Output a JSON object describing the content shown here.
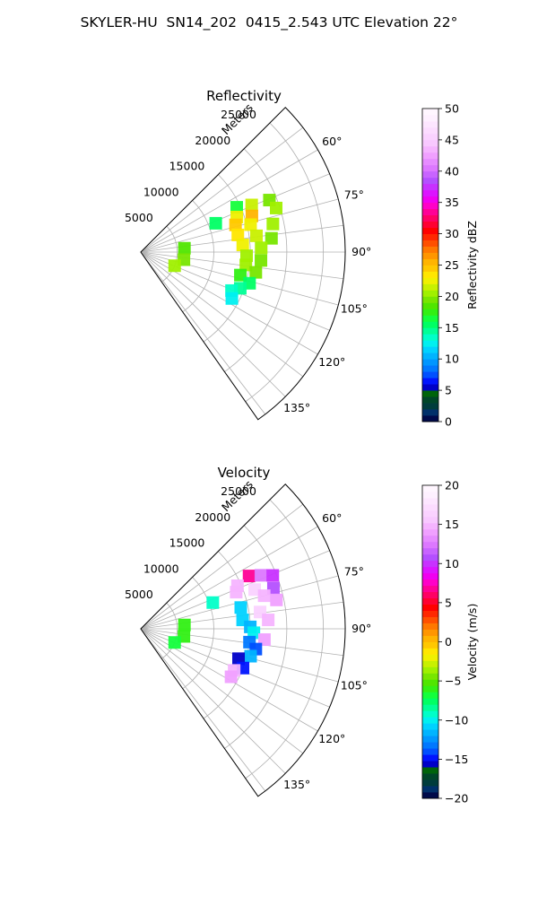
{
  "figure": {
    "title": "SKYLER-HU  SN14_202  0415_2.543 UTC Elevation 22°"
  },
  "chart_data": [
    {
      "type": "polar-sector",
      "title": "Reflectivity",
      "radial_label": "Meters",
      "range_ticks": [
        "5000",
        "10000",
        "15000",
        "20000",
        "25000"
      ],
      "range_values": [
        5000,
        10000,
        15000,
        20000,
        25000
      ],
      "range_max_m": 28000,
      "azimuth_range_deg": [
        45,
        145
      ],
      "azimuth_ticks": [
        "60°",
        "75°",
        "90°",
        "105°",
        "120°",
        "135°"
      ],
      "azimuth_values": [
        60,
        75,
        90,
        105,
        120,
        135
      ],
      "grid": true,
      "echo_cells": [
        {
          "az": 65,
          "r": 14500,
          "v": 16
        },
        {
          "az": 67,
          "r": 16500,
          "v": 21
        },
        {
          "az": 68,
          "r": 19000,
          "v": 19
        },
        {
          "az": 70,
          "r": 14000,
          "v": 22
        },
        {
          "az": 72,
          "r": 16000,
          "v": 25
        },
        {
          "az": 72,
          "r": 19500,
          "v": 20
        },
        {
          "az": 74,
          "r": 13500,
          "v": 24
        },
        {
          "az": 76,
          "r": 15500,
          "v": 22
        },
        {
          "az": 78,
          "r": 18500,
          "v": 20
        },
        {
          "az": 80,
          "r": 13500,
          "v": 23
        },
        {
          "az": 82,
          "r": 16000,
          "v": 21
        },
        {
          "az": 84,
          "r": 18000,
          "v": 19
        },
        {
          "az": 86,
          "r": 14000,
          "v": 22
        },
        {
          "az": 88,
          "r": 16500,
          "v": 20
        },
        {
          "az": 92,
          "r": 14500,
          "v": 20
        },
        {
          "az": 94,
          "r": 16500,
          "v": 19
        },
        {
          "az": 97,
          "r": 14500,
          "v": 20
        },
        {
          "az": 100,
          "r": 16000,
          "v": 19
        },
        {
          "az": 103,
          "r": 14000,
          "v": 17
        },
        {
          "az": 106,
          "r": 15500,
          "v": 15
        },
        {
          "az": 110,
          "r": 14500,
          "v": 14
        },
        {
          "az": 113,
          "r": 13500,
          "v": 13
        },
        {
          "az": 117,
          "r": 14000,
          "v": 12
        },
        {
          "az": 69,
          "r": 11000,
          "v": 15
        },
        {
          "az": 85,
          "r": 6000,
          "v": 18
        },
        {
          "az": 100,
          "r": 6000,
          "v": 19
        },
        {
          "az": 112,
          "r": 5000,
          "v": 20
        }
      ],
      "colorbar": {
        "label": "Reflectivity dBZ",
        "ticks": [
          "0",
          "5",
          "10",
          "15",
          "20",
          "25",
          "30",
          "35",
          "40",
          "45",
          "50"
        ],
        "min": 0,
        "max": 50,
        "colors": [
          "#000a4a",
          "#00306a",
          "#003c3c",
          "#004628",
          "#00640a",
          "#0000c8",
          "#0014ff",
          "#0050ff",
          "#0078ff",
          "#0096ff",
          "#00b4ff",
          "#00d2ff",
          "#00f0f0",
          "#00ffc8",
          "#00ff96",
          "#00ff64",
          "#14ff3c",
          "#32f014",
          "#50e600",
          "#78e600",
          "#a0f000",
          "#c8f000",
          "#f0f000",
          "#ffe600",
          "#ffc800",
          "#ffb400",
          "#ff9600",
          "#ff7800",
          "#ff5000",
          "#ff2800",
          "#ff0000",
          "#ff0032",
          "#ff0064",
          "#ff0096",
          "#ff00c8",
          "#f000f0",
          "#dc14ff",
          "#c832ff",
          "#b450ff",
          "#c864ff",
          "#dc78ff",
          "#e68cff",
          "#f0a0ff",
          "#f5b4ff",
          "#f8c8ff",
          "#fad2ff",
          "#fcdcff",
          "#fde6ff",
          "#fef0ff",
          "#fff6ff"
        ]
      }
    },
    {
      "type": "polar-sector",
      "title": "Velocity",
      "radial_label": "Meters",
      "range_ticks": [
        "5000",
        "10000",
        "15000",
        "20000",
        "25000"
      ],
      "range_values": [
        5000,
        10000,
        15000,
        20000,
        25000
      ],
      "range_max_m": 28000,
      "azimuth_range_deg": [
        45,
        145
      ],
      "azimuth_ticks": [
        "60°",
        "75°",
        "90°",
        "105°",
        "120°",
        "135°"
      ],
      "azimuth_values": [
        60,
        75,
        90,
        105,
        120,
        135
      ],
      "grid": true,
      "echo_cells": [
        {
          "az": 64,
          "r": 16500,
          "v": 7
        },
        {
          "az": 66,
          "r": 18000,
          "v": 12
        },
        {
          "az": 68,
          "r": 19500,
          "v": 10
        },
        {
          "az": 66,
          "r": 14500,
          "v": 15
        },
        {
          "az": 69,
          "r": 14000,
          "v": 15
        },
        {
          "az": 71,
          "r": 16500,
          "v": 16
        },
        {
          "az": 73,
          "r": 19000,
          "v": 11
        },
        {
          "az": 75,
          "r": 17500,
          "v": 15
        },
        {
          "az": 78,
          "r": 19000,
          "v": 14
        },
        {
          "az": 78,
          "r": 14000,
          "v": -11
        },
        {
          "az": 82,
          "r": 16500,
          "v": 16
        },
        {
          "az": 85,
          "r": 14000,
          "v": -11
        },
        {
          "az": 86,
          "r": 17500,
          "v": 15
        },
        {
          "az": 89,
          "r": 15000,
          "v": -12
        },
        {
          "az": 92,
          "r": 15500,
          "v": -10
        },
        {
          "az": 95,
          "r": 17000,
          "v": 14
        },
        {
          "az": 97,
          "r": 15000,
          "v": -13
        },
        {
          "az": 100,
          "r": 16000,
          "v": -14
        },
        {
          "az": 104,
          "r": 15500,
          "v": -12
        },
        {
          "az": 107,
          "r": 14000,
          "v": -16
        },
        {
          "az": 111,
          "r": 15000,
          "v": -15
        },
        {
          "az": 114,
          "r": 14000,
          "v": 15
        },
        {
          "az": 118,
          "r": 14000,
          "v": 14
        },
        {
          "az": 70,
          "r": 10500,
          "v": -9
        },
        {
          "az": 85,
          "r": 6000,
          "v": -6
        },
        {
          "az": 100,
          "r": 6000,
          "v": -6
        },
        {
          "az": 112,
          "r": 5000,
          "v": -7
        }
      ],
      "colorbar": {
        "label": "Velocity (m/s)",
        "ticks": [
          "−20",
          "−15",
          "−10",
          "−5",
          "0",
          "5",
          "10",
          "15",
          "20"
        ],
        "min": -20,
        "max": 20,
        "colors": [
          "#000a4a",
          "#00306a",
          "#003c3c",
          "#004628",
          "#00640a",
          "#0000c8",
          "#0014ff",
          "#0050ff",
          "#0078ff",
          "#0096ff",
          "#00b4ff",
          "#00d2ff",
          "#00f0f0",
          "#00ffc8",
          "#00ff96",
          "#00ff64",
          "#14ff3c",
          "#32f014",
          "#50e600",
          "#78e600",
          "#a0f000",
          "#c8f000",
          "#f0f000",
          "#ffe600",
          "#ffc800",
          "#ffb400",
          "#ff9600",
          "#ff7800",
          "#ff5000",
          "#ff2800",
          "#ff0000",
          "#ff0032",
          "#ff0064",
          "#ff0096",
          "#ff00c8",
          "#f000f0",
          "#dc14ff",
          "#c832ff",
          "#b450ff",
          "#c864ff",
          "#dc78ff",
          "#e68cff",
          "#f0a0ff",
          "#f5b4ff",
          "#f8c8ff",
          "#fad2ff",
          "#fcdcff",
          "#fde6ff",
          "#fef0ff",
          "#fff6ff"
        ]
      }
    }
  ]
}
